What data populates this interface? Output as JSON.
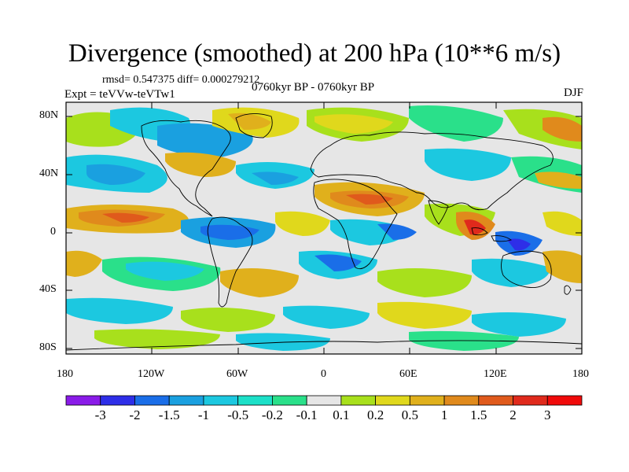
{
  "title": "Divergence (smoothed) at 200 hPa (10**6 m/s)",
  "stats": "rmsd= 0.547375 diff= 0.000279212",
  "experiment": "Expt = teVVw-teVTw1",
  "period": "0760kyr BP - 0760kyr BP",
  "season": "DJF",
  "lat_ticks": [
    "80N",
    "40N",
    "0",
    "40S",
    "80S"
  ],
  "lon_ticks": [
    "180",
    "120W",
    "60W",
    "0",
    "60E",
    "120E",
    "180"
  ],
  "colorbar": {
    "labels": [
      "-3",
      "-2",
      "-1.5",
      "-1",
      "-0.5",
      "-0.2",
      "-0.1",
      "0.1",
      "0.2",
      "0.5",
      "1",
      "1.5",
      "2",
      "3"
    ],
    "colors": [
      "#8a1be8",
      "#2e2ee8",
      "#1a6ee8",
      "#1aa0e0",
      "#1cc8e0",
      "#1ce0c8",
      "#2ae08a",
      "#e6e6e6",
      "#a8e01c",
      "#e0d81c",
      "#e0b01c",
      "#e08a1c",
      "#e05a1c",
      "#e02a1c",
      "#f00a0a"
    ]
  }
}
